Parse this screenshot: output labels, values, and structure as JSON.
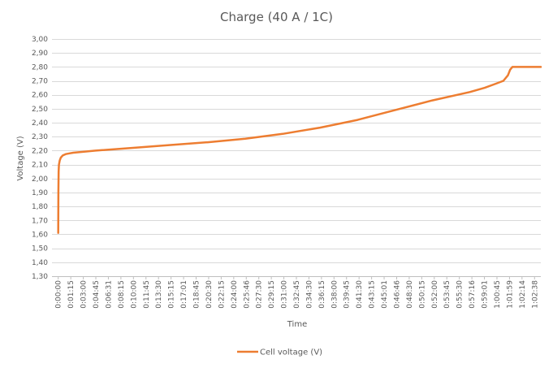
{
  "chart_data": {
    "type": "line",
    "title": "Charge (40 A / 1C)",
    "xlabel": "Time",
    "ylabel": "Voltage (V)",
    "ylim": [
      1.3,
      3.0
    ],
    "yticks": [
      "3,00",
      "2,90",
      "2,80",
      "2,70",
      "2,60",
      "2,50",
      "2,40",
      "2,30",
      "2,20",
      "2,10",
      "2,00",
      "1,90",
      "1,80",
      "1,70",
      "1,60",
      "1,50",
      "1,40",
      "1,30"
    ],
    "ytick_values": [
      3.0,
      2.9,
      2.8,
      2.7,
      2.6,
      2.5,
      2.4,
      2.3,
      2.2,
      2.1,
      2.0,
      1.9,
      1.8,
      1.7,
      1.6,
      1.5,
      1.4,
      1.3
    ],
    "xticks": [
      "0:00:00",
      "0:01:15",
      "0:03:00",
      "0:04:45",
      "0:06:31",
      "0:08:15",
      "0:10:00",
      "0:11:45",
      "0:13:30",
      "0:15:15",
      "0:17:01",
      "0:18:45",
      "0:20:30",
      "0:22:15",
      "0:24:00",
      "0:25:46",
      "0:27:30",
      "0:29:15",
      "0:31:00",
      "0:32:45",
      "0:34:30",
      "0:36:15",
      "0:38:00",
      "0:39:45",
      "0:41:30",
      "0:43:15",
      "0:45:01",
      "0:46:46",
      "0:48:30",
      "0:50:15",
      "0:52:00",
      "0:53:45",
      "0:55:30",
      "0:57:16",
      "0:59:01",
      "1:00:45",
      "1:01:59",
      "1:02:14",
      "1:02:38"
    ],
    "grid": true,
    "legend": "bottom",
    "color": "#ed7d31",
    "series": [
      {
        "name": "Cell voltage (V)",
        "x_minutes": [
          0,
          0.02,
          0.05,
          0.1,
          0.2,
          0.35,
          0.6,
          1.0,
          1.5,
          2.0,
          3.0,
          5.0,
          10,
          15,
          20,
          25,
          30,
          35,
          40,
          45,
          50,
          55,
          57,
          58.5,
          59.5,
          60.1,
          60.4,
          60.7,
          61.0,
          62.0,
          63.5,
          64.5
        ],
        "values": [
          1.61,
          1.9,
          2.05,
          2.1,
          2.13,
          2.15,
          2.165,
          2.175,
          2.18,
          2.185,
          2.19,
          2.2,
          2.22,
          2.24,
          2.26,
          2.285,
          2.32,
          2.365,
          2.42,
          2.49,
          2.56,
          2.62,
          2.65,
          2.68,
          2.7,
          2.74,
          2.78,
          2.8,
          2.8,
          2.8,
          2.8,
          2.8
        ]
      }
    ]
  }
}
